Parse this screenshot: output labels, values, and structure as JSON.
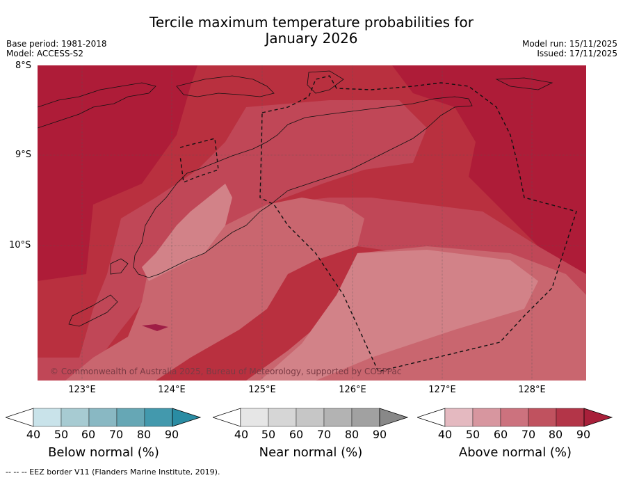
{
  "title_line1": "Tercile maximum temperature probabilities for",
  "title_line2": "January 2026",
  "base_period": "Base period: 1981-2018",
  "model": "Model: ACCESS-S2",
  "model_run": "Model run: 15/11/2025",
  "issued": "Issued: 17/11/2025",
  "lat_labels": [
    "8°S",
    "9°S",
    "10°S"
  ],
  "lon_labels": [
    "123°E",
    "124°E",
    "125°E",
    "126°E",
    "127°E",
    "128°E"
  ],
  "copyright": "© Commonwealth of Australia 2025, Bureau of Meteorology, supported by COSPPac",
  "colorbars": [
    {
      "label": "Below normal (%)",
      "ticks": [
        "40",
        "50",
        "60",
        "70",
        "80",
        "90"
      ],
      "colors": [
        "#ffffff",
        "#c9e3ea",
        "#a7cbd2",
        "#89b8c3",
        "#66a7b5",
        "#4399ad",
        "#2a8ca3"
      ]
    },
    {
      "label": "Near normal (%)",
      "ticks": [
        "40",
        "50",
        "60",
        "70",
        "80",
        "90"
      ],
      "colors": [
        "#ffffff",
        "#e6e6e6",
        "#d6d6d6",
        "#c6c6c6",
        "#b3b3b3",
        "#a1a1a1",
        "#888888"
      ]
    },
    {
      "label": "Above normal (%)",
      "ticks": [
        "40",
        "50",
        "60",
        "70",
        "80",
        "90"
      ],
      "colors": [
        "#ffffff",
        "#e4b9c0",
        "#d7969f",
        "#cc727e",
        "#c0525f",
        "#b33548",
        "#a8203a"
      ]
    }
  ],
  "footer": "-- -- -- EEZ border V11 (Flanders Marine Institute, 2019).",
  "map_colors": {
    "p90": "#ae1c38",
    "p80": "#b9303f",
    "p70": "#c04757",
    "p60": "#c9666f",
    "p50": "#d28288"
  }
}
